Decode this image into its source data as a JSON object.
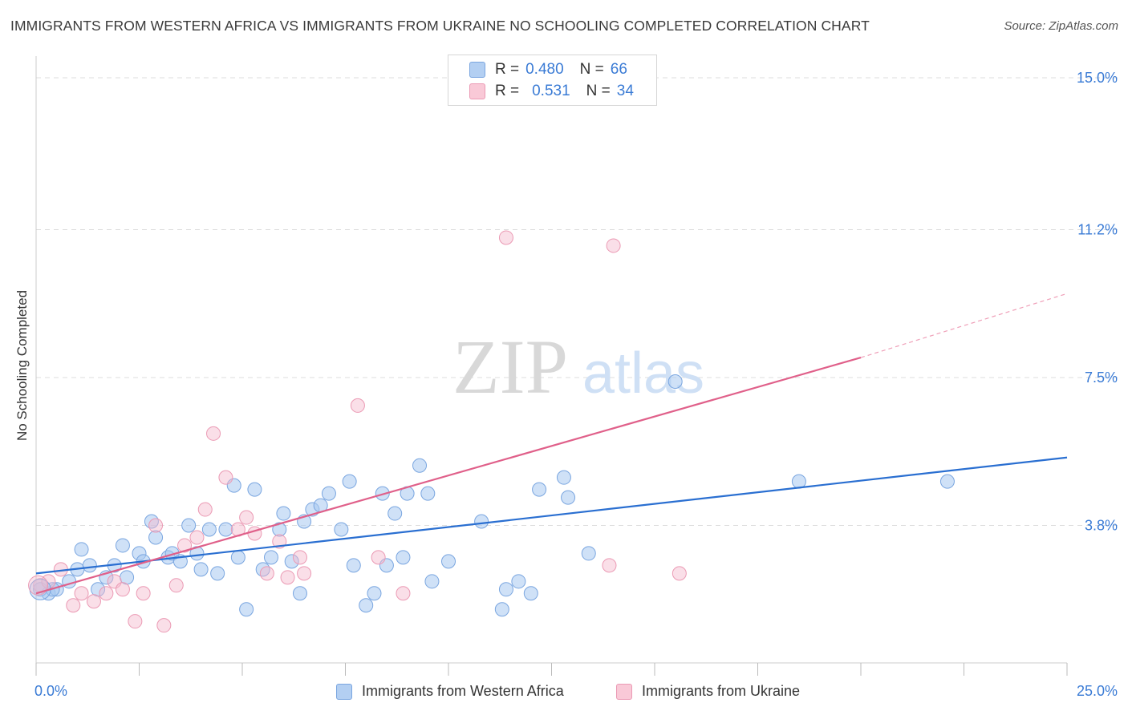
{
  "title": "IMMIGRANTS FROM WESTERN AFRICA VS IMMIGRANTS FROM UKRAINE NO SCHOOLING COMPLETED CORRELATION CHART",
  "source": "Source: ZipAtlas.com",
  "watermark": {
    "zip": "ZIP",
    "atlas": "atlas"
  },
  "legend": {
    "series1": {
      "r_label": "R =",
      "r_value": "0.480",
      "n_label": "N =",
      "n_value": "66"
    },
    "series2": {
      "r_label": "R =",
      "r_value": "0.531",
      "n_label": "N =",
      "n_value": "34"
    }
  },
  "chart_data": {
    "type": "scatter",
    "title": "IMMIGRANTS FROM WESTERN AFRICA VS IMMIGRANTS FROM UKRAINE NO SCHOOLING COMPLETED CORRELATION CHART",
    "xlabel": "",
    "ylabel": "No Schooling Completed",
    "x_tick_labels": [
      "0.0%",
      "25.0%"
    ],
    "y_tick_labels": [
      "3.8%",
      "7.5%",
      "11.2%",
      "15.0%"
    ],
    "y_ticks": [
      3.8,
      7.5,
      11.2,
      15.0
    ],
    "xlim": [
      0,
      25
    ],
    "ylim": [
      0,
      15.4
    ],
    "grid": "horizontal dashed",
    "colors": {
      "series1": "#a8c8f0",
      "series1_line": "#2a6fd1",
      "series2": "#f5b8cb",
      "series2_line": "#e0608a"
    },
    "series": [
      {
        "name": "Immigrants from Western Africa",
        "color": "#a8c8f0",
        "points": [
          [
            0.3,
            2.1
          ],
          [
            0.5,
            2.2
          ],
          [
            0.8,
            2.4
          ],
          [
            1.0,
            2.7
          ],
          [
            1.1,
            3.2
          ],
          [
            1.3,
            2.8
          ],
          [
            1.5,
            2.2
          ],
          [
            1.7,
            2.5
          ],
          [
            1.9,
            2.8
          ],
          [
            2.1,
            3.3
          ],
          [
            2.2,
            2.5
          ],
          [
            2.5,
            3.1
          ],
          [
            2.6,
            2.9
          ],
          [
            2.8,
            3.9
          ],
          [
            2.9,
            3.5
          ],
          [
            3.2,
            3.0
          ],
          [
            3.3,
            3.1
          ],
          [
            3.5,
            2.9
          ],
          [
            3.7,
            3.8
          ],
          [
            3.9,
            3.1
          ],
          [
            4.0,
            2.7
          ],
          [
            4.2,
            3.7
          ],
          [
            4.4,
            2.6
          ],
          [
            4.6,
            3.7
          ],
          [
            4.8,
            4.8
          ],
          [
            4.9,
            3.0
          ],
          [
            5.1,
            1.7
          ],
          [
            5.3,
            4.7
          ],
          [
            5.5,
            2.7
          ],
          [
            5.7,
            3.0
          ],
          [
            5.9,
            3.7
          ],
          [
            6.0,
            4.1
          ],
          [
            6.2,
            2.9
          ],
          [
            6.4,
            2.1
          ],
          [
            6.5,
            3.9
          ],
          [
            6.7,
            4.2
          ],
          [
            6.9,
            4.3
          ],
          [
            7.1,
            4.6
          ],
          [
            7.4,
            3.7
          ],
          [
            7.6,
            4.9
          ],
          [
            7.7,
            2.8
          ],
          [
            8.0,
            1.8
          ],
          [
            8.2,
            2.1
          ],
          [
            8.4,
            4.6
          ],
          [
            8.5,
            2.8
          ],
          [
            8.7,
            4.1
          ],
          [
            8.9,
            3.0
          ],
          [
            9.0,
            4.6
          ],
          [
            9.3,
            5.3
          ],
          [
            9.5,
            4.6
          ],
          [
            9.6,
            2.4
          ],
          [
            10.0,
            2.9
          ],
          [
            10.8,
            3.9
          ],
          [
            11.3,
            1.7
          ],
          [
            11.4,
            2.2
          ],
          [
            11.7,
            2.4
          ],
          [
            12.0,
            2.1
          ],
          [
            12.2,
            4.7
          ],
          [
            12.8,
            5.0
          ],
          [
            12.9,
            4.5
          ],
          [
            13.4,
            3.1
          ],
          [
            15.5,
            7.4
          ],
          [
            18.5,
            4.9
          ],
          [
            22.1,
            4.9
          ],
          [
            0.1,
            2.2
          ],
          [
            0.4,
            2.2
          ]
        ],
        "trend": [
          [
            0,
            2.6
          ],
          [
            25,
            5.5
          ]
        ]
      },
      {
        "name": "Immigrants from Ukraine",
        "color": "#f5b8cb",
        "points": [
          [
            0.1,
            2.3
          ],
          [
            0.3,
            2.4
          ],
          [
            0.6,
            2.7
          ],
          [
            0.9,
            1.8
          ],
          [
            1.1,
            2.1
          ],
          [
            1.4,
            1.9
          ],
          [
            1.7,
            2.1
          ],
          [
            1.9,
            2.4
          ],
          [
            2.1,
            2.2
          ],
          [
            2.4,
            1.4
          ],
          [
            2.6,
            2.1
          ],
          [
            2.9,
            3.8
          ],
          [
            3.1,
            1.3
          ],
          [
            3.4,
            2.3
          ],
          [
            3.6,
            3.3
          ],
          [
            3.9,
            3.5
          ],
          [
            4.1,
            4.2
          ],
          [
            4.3,
            6.1
          ],
          [
            4.6,
            5.0
          ],
          [
            4.9,
            3.7
          ],
          [
            5.1,
            4.0
          ],
          [
            5.3,
            3.6
          ],
          [
            5.6,
            2.6
          ],
          [
            5.9,
            3.4
          ],
          [
            6.1,
            2.5
          ],
          [
            6.4,
            3.0
          ],
          [
            6.5,
            2.6
          ],
          [
            7.8,
            6.8
          ],
          [
            8.3,
            3.0
          ],
          [
            8.9,
            2.1
          ],
          [
            11.4,
            11.0
          ],
          [
            13.9,
            2.8
          ],
          [
            14.0,
            10.8
          ],
          [
            15.6,
            2.6
          ]
        ],
        "trend": [
          [
            0,
            2.1
          ],
          [
            20,
            8.0
          ]
        ],
        "trend_extension": [
          [
            20,
            8.0
          ],
          [
            25,
            9.6
          ]
        ]
      }
    ]
  },
  "bottom_legend": {
    "series1": "Immigrants from Western Africa",
    "series2": "Immigrants from Ukraine"
  },
  "x_axis": {
    "left": "0.0%",
    "right": "25.0%"
  }
}
